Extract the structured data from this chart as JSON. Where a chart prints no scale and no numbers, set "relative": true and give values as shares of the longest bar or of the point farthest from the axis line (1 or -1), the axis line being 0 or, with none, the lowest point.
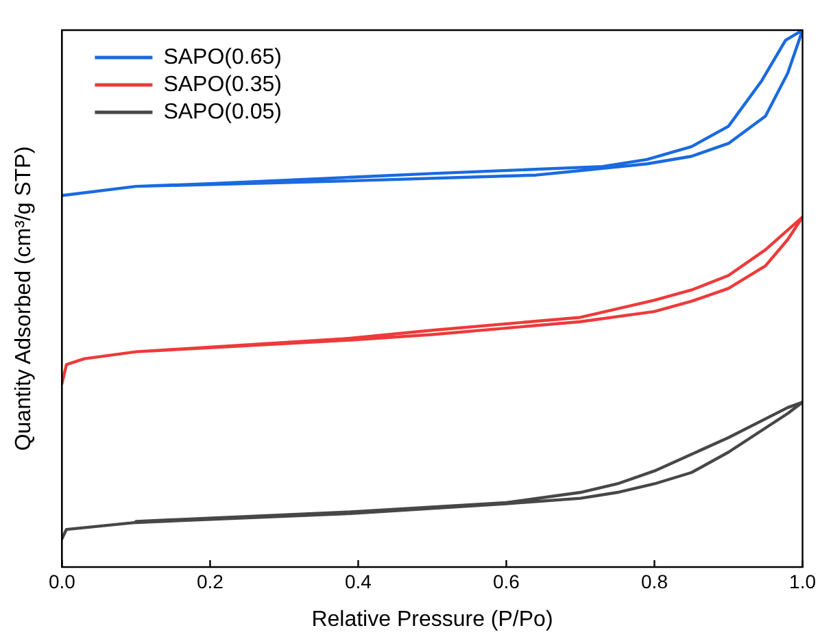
{
  "chart_data": {
    "type": "line",
    "xlabel": "Relative Pressure (P/Po)",
    "ylabel": "Quantity Adsorbed (cm³/g STP)",
    "relative": true,
    "xlim": [
      0,
      1
    ],
    "xticks": [
      {
        "value": 0,
        "label": "0.0"
      },
      {
        "value": 0.2,
        "label": "0.2"
      },
      {
        "value": 0.4,
        "label": "0.4"
      },
      {
        "value": 0.6,
        "label": "0.6"
      },
      {
        "value": 0.8,
        "label": "0.8"
      },
      {
        "value": 1,
        "label": "1.0"
      }
    ],
    "grid": false,
    "legend": "top left",
    "marker": "none",
    "line_style": "solid",
    "series": [
      {
        "name": "SAPO(0.65)",
        "color": "#1a6ae0",
        "x": [
          0,
          0.1,
          0.38,
          0.64,
          0.79,
          0.85,
          0.9,
          0.95,
          0.98,
          1.0,
          0.977,
          0.945,
          0.9,
          0.85,
          0.79,
          0.73,
          0.5,
          0.2,
          0.1
        ],
        "values": [
          0.692,
          0.709,
          0.719,
          0.73,
          0.751,
          0.765,
          0.789,
          0.84,
          0.92,
          1.0,
          0.981,
          0.906,
          0.821,
          0.783,
          0.759,
          0.746,
          0.733,
          0.714,
          0.709
        ]
      },
      {
        "name": "SAPO(0.35)",
        "color": "#ee3a3a",
        "x": [
          0,
          0.006,
          0.03,
          0.1,
          0.38,
          0.5,
          0.7,
          0.8,
          0.85,
          0.9,
          0.95,
          0.98,
          1.0,
          0.95,
          0.9,
          0.85,
          0.8,
          0.75,
          0.7,
          0.5,
          0.38,
          0.1
        ],
        "values": [
          0.342,
          0.377,
          0.388,
          0.401,
          0.422,
          0.433,
          0.457,
          0.476,
          0.495,
          0.519,
          0.561,
          0.61,
          0.652,
          0.591,
          0.543,
          0.516,
          0.497,
          0.481,
          0.465,
          0.441,
          0.425,
          0.401
        ]
      },
      {
        "name": "SAPO(0.05)",
        "color": "#474747",
        "x": [
          0,
          0.006,
          0.1,
          0.38,
          0.6,
          0.7,
          0.75,
          0.8,
          0.85,
          0.9,
          0.98,
          1.0,
          0.98,
          0.9,
          0.8,
          0.75,
          0.7,
          0.6,
          0.38,
          0.1
        ],
        "values": [
          0.053,
          0.07,
          0.083,
          0.099,
          0.118,
          0.128,
          0.139,
          0.155,
          0.176,
          0.214,
          0.286,
          0.307,
          0.297,
          0.241,
          0.179,
          0.155,
          0.139,
          0.12,
          0.102,
          0.085
        ]
      }
    ]
  }
}
